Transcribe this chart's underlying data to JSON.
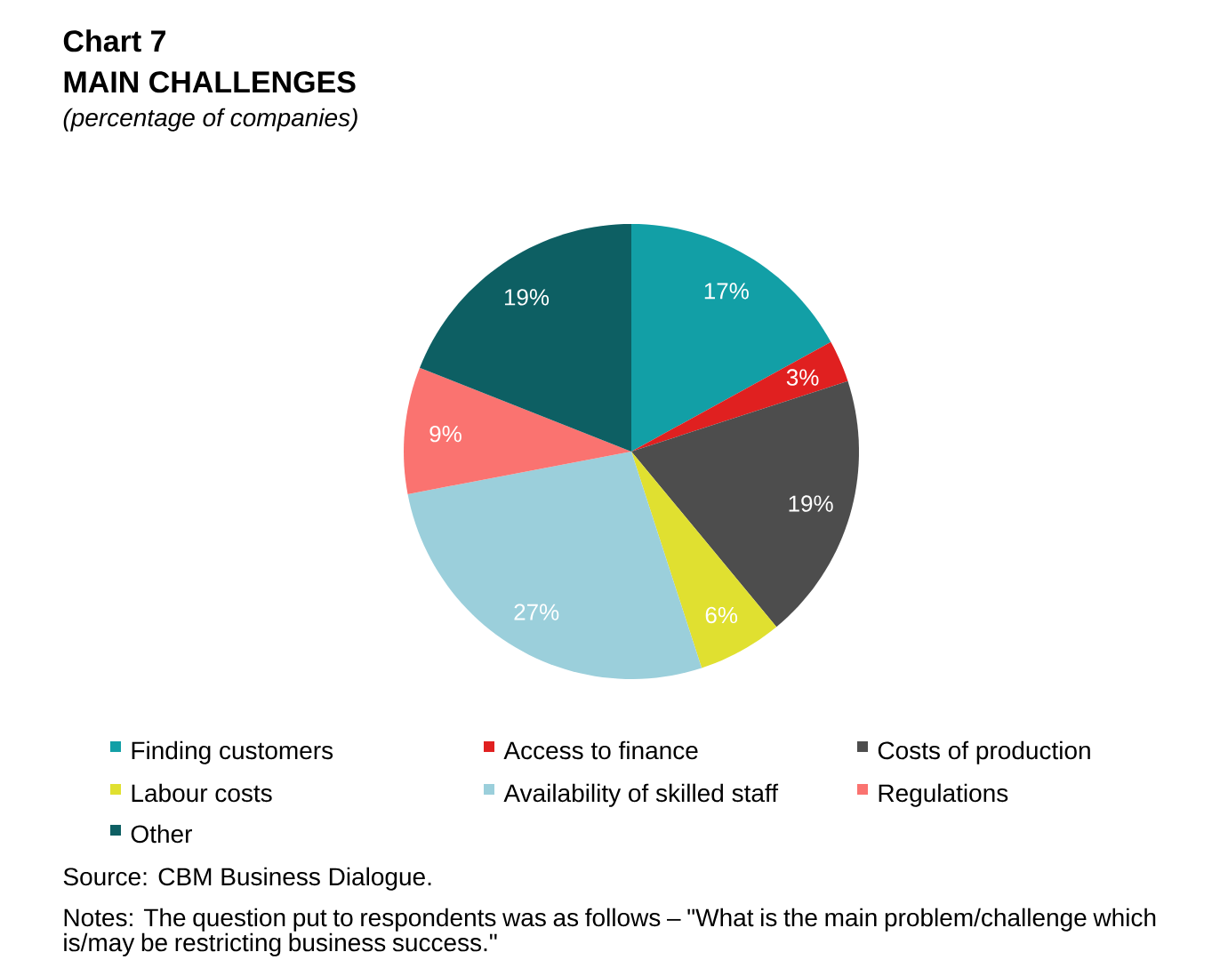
{
  "chart_data": {
    "type": "pie",
    "title": "Chart 7",
    "subtitle": "MAIN CHALLENGES",
    "categories": [
      "Finding customers",
      "Access to finance",
      "Costs of production",
      "Labour costs",
      "Availability of skilled staff",
      "Regulations",
      "Other"
    ],
    "values": [
      17,
      3,
      19,
      6,
      27,
      9,
      19
    ],
    "value_labels": [
      "17%",
      "3%",
      "19%",
      "6%",
      "27%",
      "9%",
      "19%"
    ],
    "colors": [
      "#129fa6",
      "#e02020",
      "#4d4d4d",
      "#e0e030",
      "#9bcfdb",
      "#fa7370",
      "#0d5f63"
    ],
    "data_labels": true,
    "legend": "bottom",
    "annotations": [
      "(percentage of companies)",
      "Source: CBM Business Dialogue.",
      "Notes: The question put to respondents was as follows – \"What is the main problem/challenge which is/may be restricting business success.\""
    ]
  }
}
